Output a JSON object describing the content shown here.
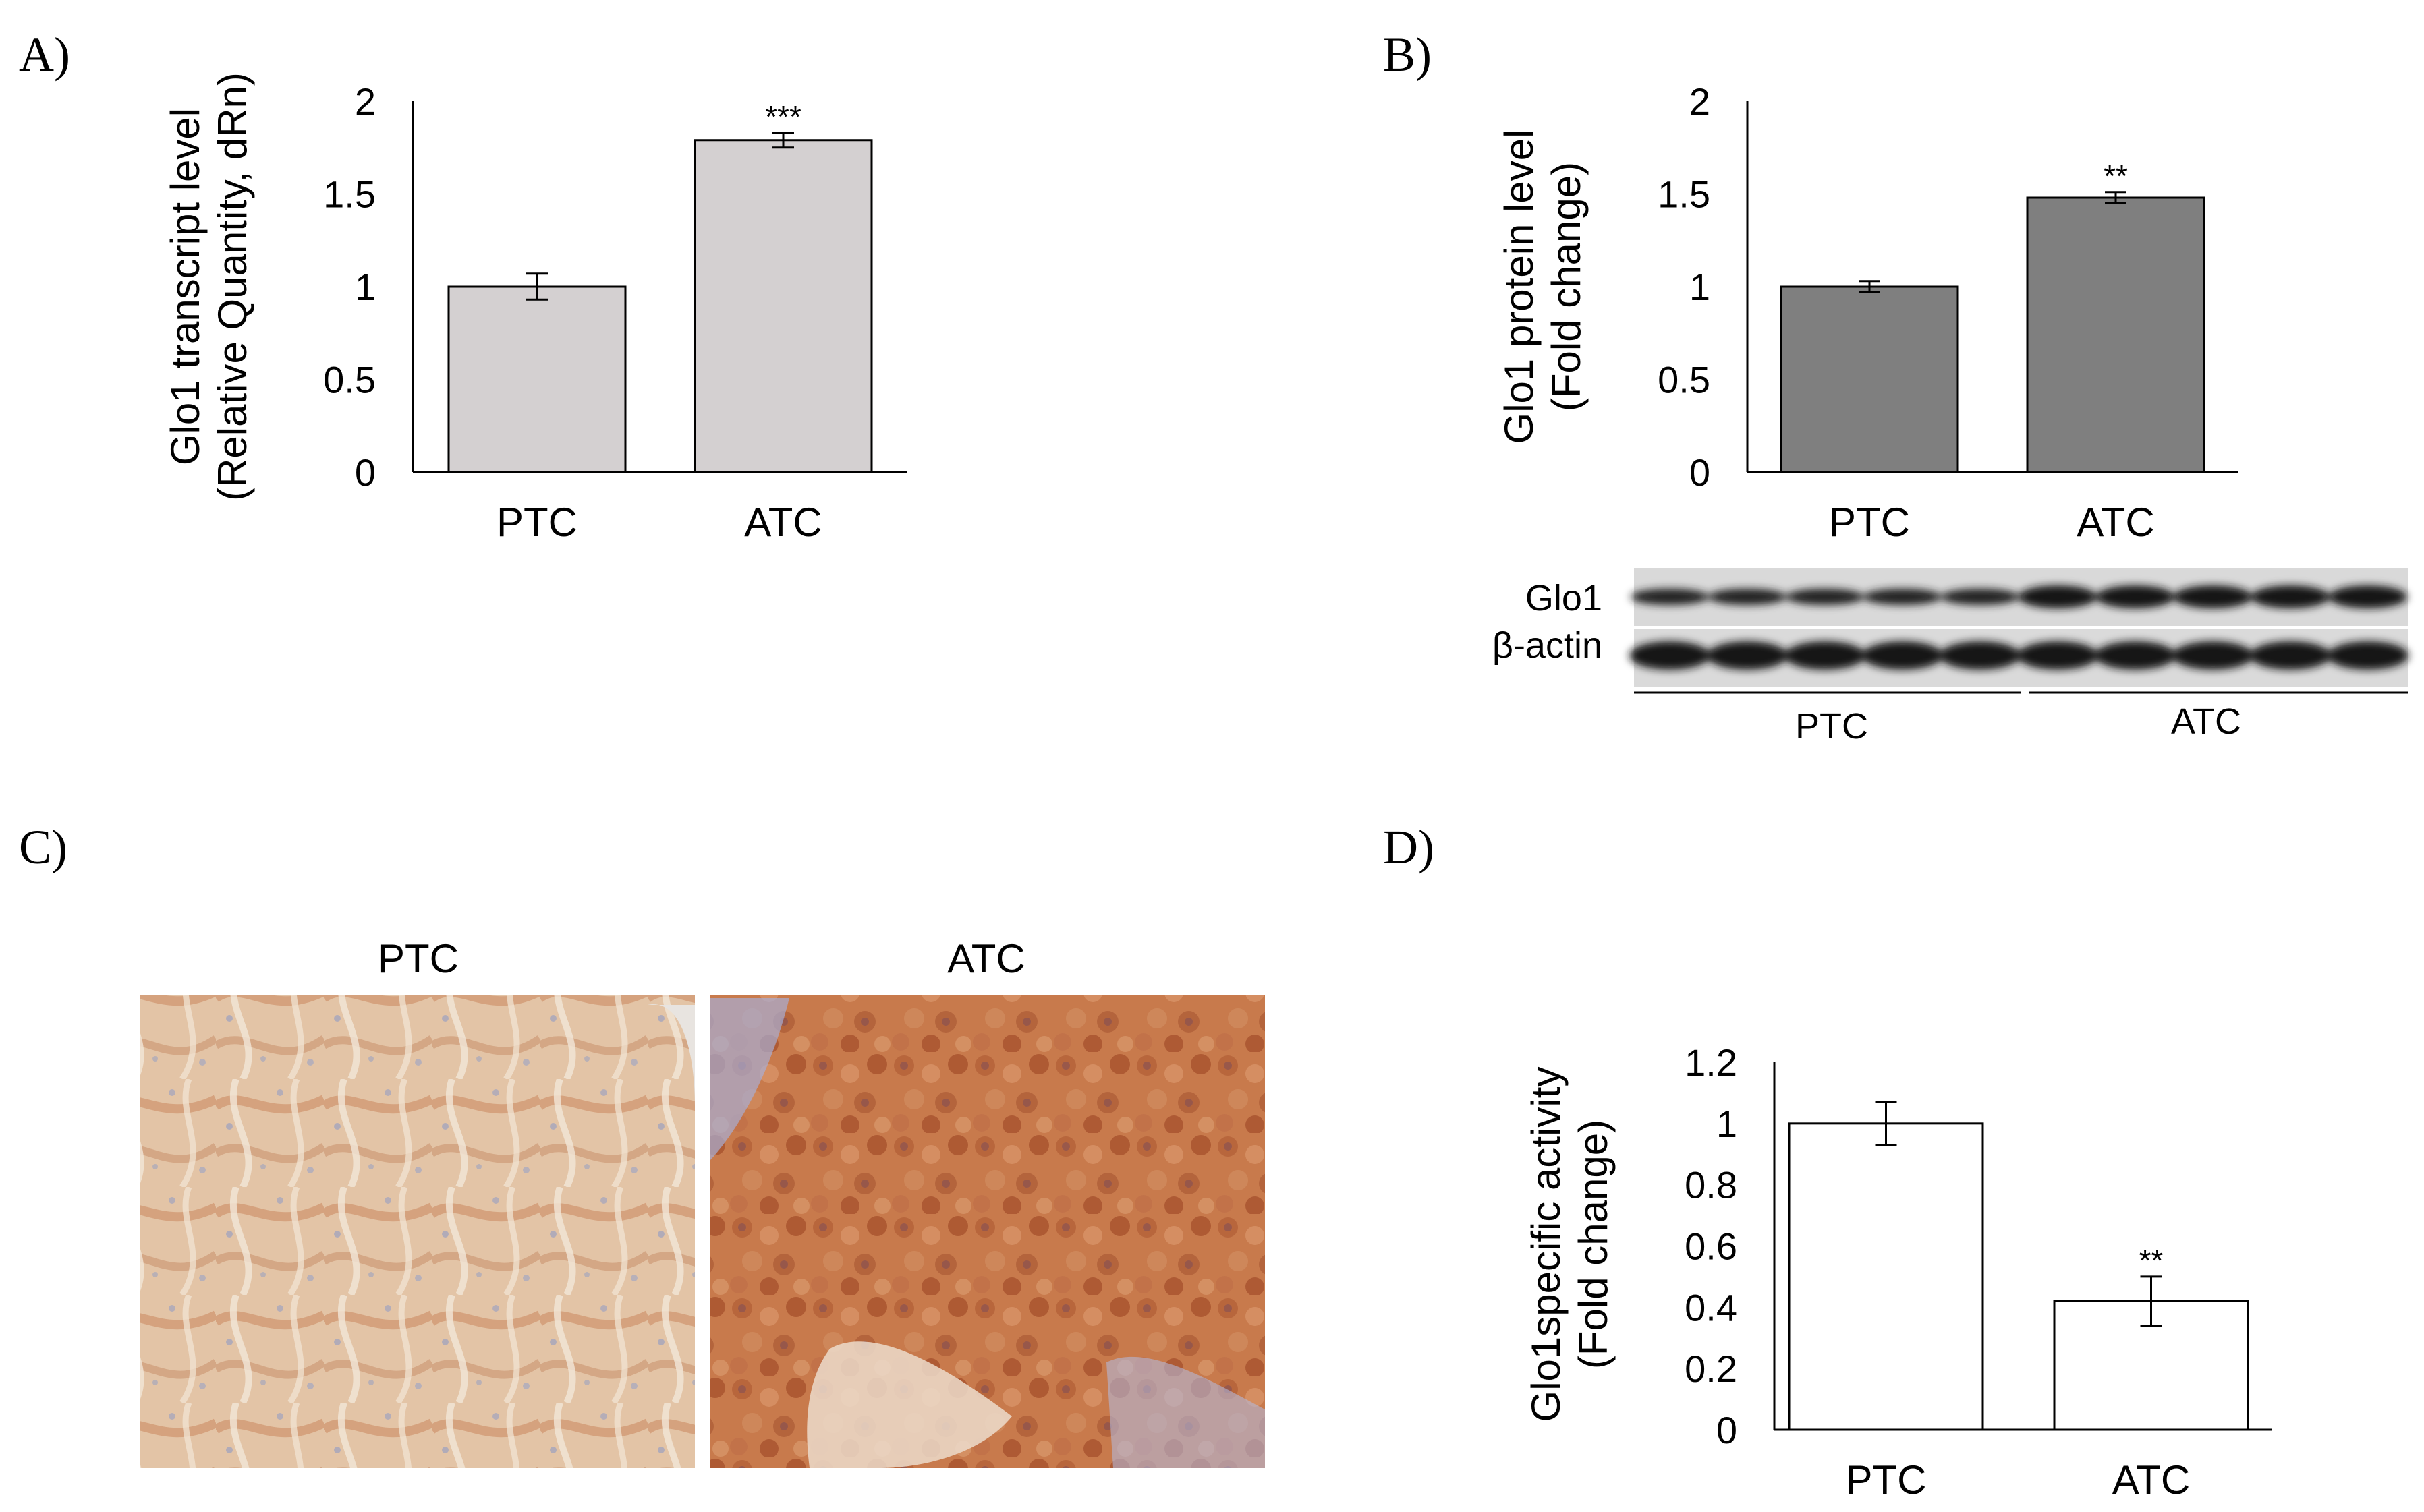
{
  "panels": {
    "a": {
      "label": "A)"
    },
    "b": {
      "label": "B)"
    },
    "c": {
      "label": "C)"
    },
    "d": {
      "label": "D)"
    }
  },
  "blot": {
    "row_labels": [
      "Glo1",
      "β-actin"
    ],
    "group_labels": [
      "PTC",
      "ATC"
    ]
  },
  "ihc": {
    "labels": [
      "PTC",
      "ATC"
    ]
  },
  "chart_data": [
    {
      "type": "bar",
      "panel": "A)",
      "categories": [
        "PTC",
        "ATC"
      ],
      "values": [
        1.0,
        1.79
      ],
      "errors": [
        0.07,
        0.04
      ],
      "significance": [
        "",
        "***"
      ],
      "ylabel_lines": [
        "Glo1 transcript level",
        "(Relative Quantity,  dRn)"
      ],
      "ylim": [
        0,
        2
      ],
      "yticks": [
        0,
        0.5,
        1,
        1.5,
        2
      ],
      "ytick_labels": [
        "0",
        "0.5",
        "1",
        "1.5",
        "2"
      ],
      "color": "#d4d0d1"
    },
    {
      "type": "bar",
      "panel": "B)",
      "categories": [
        "PTC",
        "ATC"
      ],
      "values": [
        1.0,
        1.48
      ],
      "errors": [
        0.03,
        0.03
      ],
      "significance": [
        "",
        "**"
      ],
      "ylabel_lines": [
        "Glo1 protein level",
        "(Fold change)"
      ],
      "ylim": [
        0,
        2
      ],
      "yticks": [
        0,
        0.5,
        1,
        1.5,
        2
      ],
      "ytick_labels": [
        "0",
        "0.5",
        "1",
        "1.5",
        "2"
      ],
      "color": "#7f7f7f"
    },
    {
      "type": "bar",
      "panel": "D)",
      "categories": [
        "PTC",
        "ATC"
      ],
      "values": [
        1.0,
        0.42
      ],
      "errors": [
        0.07,
        0.08
      ],
      "significance": [
        "",
        "**"
      ],
      "ylabel_lines": [
        "Glo1specific activity",
        "(Fold change)"
      ],
      "ylim": [
        0,
        1.2
      ],
      "yticks": [
        0,
        0.2,
        0.4,
        0.6,
        0.8,
        1,
        1.2
      ],
      "ytick_labels": [
        "0",
        "0.2",
        "0.4",
        "0.6",
        "0.8",
        "1",
        "1.2"
      ],
      "color": "#ffffff"
    }
  ]
}
